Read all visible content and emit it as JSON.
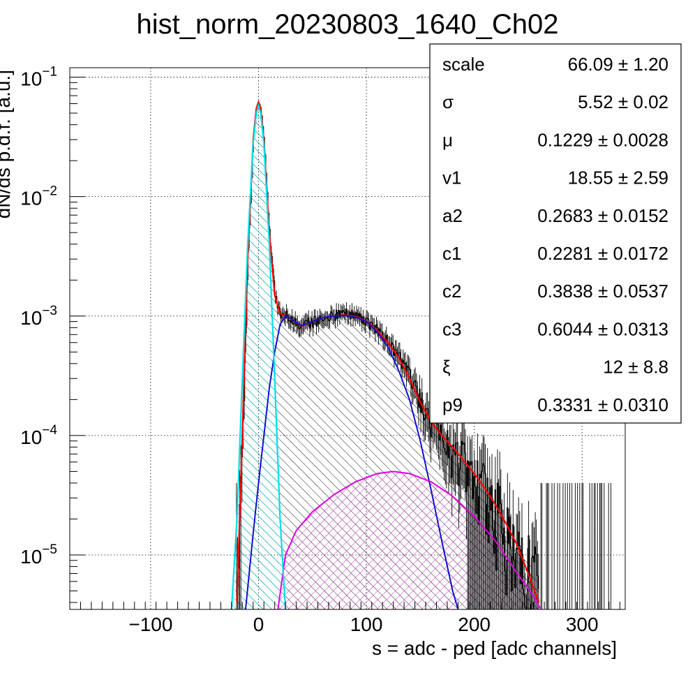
{
  "chart_data": {
    "type": "histogram",
    "title": "hist_norm_20230803_1640_Ch02",
    "xlabel": "s = adc - ped [adc channels]",
    "ylabel": "dN/ds p.d.f. [a.u.]",
    "xlim": [
      -175,
      340
    ],
    "ylim": [
      3.5e-06,
      0.12
    ],
    "yscale": "log",
    "grid": true,
    "x_ticks": [
      {
        "value": -100,
        "label": "−100"
      },
      {
        "value": 0,
        "label": "0"
      },
      {
        "value": 100,
        "label": "100"
      },
      {
        "value": 200,
        "label": "200"
      },
      {
        "value": 300,
        "label": "300"
      }
    ],
    "y_ticks": [
      {
        "value": 1e-05,
        "base": "10",
        "exp": "−5"
      },
      {
        "value": 0.0001,
        "base": "10",
        "exp": "−4"
      },
      {
        "value": 0.001,
        "base": "10",
        "exp": "−3"
      },
      {
        "value": 0.01,
        "base": "10",
        "exp": "−2"
      },
      {
        "value": 0.1,
        "base": "10",
        "exp": "−1"
      }
    ],
    "fit_parameters": [
      {
        "name": "scale",
        "value": "66.09",
        "error": "1.20"
      },
      {
        "name": "σ",
        "value": "5.52",
        "error": "0.02"
      },
      {
        "name": "μ",
        "value": "0.1229",
        "error": "0.0028"
      },
      {
        "name": "v1",
        "value": "18.55",
        "error": "2.59"
      },
      {
        "name": "a2",
        "value": "0.2683",
        "error": "0.0152"
      },
      {
        "name": "c1",
        "value": "0.2281",
        "error": "0.0172"
      },
      {
        "name": "c2",
        "value": "0.3838",
        "error": "0.0537"
      },
      {
        "name": "c3",
        "value": "0.6044",
        "error": "0.0313"
      },
      {
        "name": "ξ",
        "value": "12",
        "error": "8.8"
      },
      {
        "name": "p9",
        "value": "0.3331",
        "error": "0.0310"
      }
    ],
    "series": [
      {
        "role": "data-histogram",
        "color": "#000000",
        "x": [
          -20,
          -15,
          -10,
          -5,
          -2,
          0,
          2,
          5,
          10,
          15,
          20,
          30,
          40,
          50,
          60,
          70,
          80,
          90,
          100,
          110,
          120,
          130,
          140,
          150,
          160,
          170,
          180,
          190,
          200,
          210,
          220,
          230,
          240,
          250,
          260
        ],
        "y": [
          4e-06,
          0.0001,
          0.003,
          0.03,
          0.055,
          0.06,
          0.055,
          0.03,
          0.005,
          0.0015,
          0.00105,
          0.00095,
          0.00082,
          0.0009,
          0.00097,
          0.001,
          0.00105,
          0.001,
          0.0009,
          0.00075,
          0.0006,
          0.00045,
          0.0003,
          0.0002,
          0.00013,
          0.0001,
          7e-05,
          6e-05,
          4.5e-05,
          3.5e-05,
          2.5e-05,
          1.8e-05,
          1.3e-05,
          9e-06,
          6e-06
        ]
      },
      {
        "role": "total-fit",
        "color": "#ff0000",
        "x": [
          -20,
          -15,
          -10,
          -5,
          -2,
          0,
          2,
          5,
          10,
          15,
          20,
          30,
          40,
          50,
          60,
          70,
          80,
          90,
          100,
          110,
          120,
          130,
          140,
          150,
          160,
          170,
          180,
          190,
          200,
          210,
          220,
          230,
          240,
          250,
          260
        ],
        "y": [
          4e-06,
          0.0001,
          0.003,
          0.03,
          0.055,
          0.062,
          0.055,
          0.03,
          0.005,
          0.0015,
          0.00105,
          0.00095,
          0.00082,
          0.0009,
          0.00097,
          0.001,
          0.00102,
          0.00099,
          0.00091,
          0.00076,
          0.0006,
          0.00045,
          0.0003,
          0.00019,
          0.00013,
          0.0001,
          8e-05,
          6.2e-05,
          4.8e-05,
          3.6e-05,
          2.6e-05,
          1.8e-05,
          1.2e-05,
          7e-06,
          4e-06
        ]
      },
      {
        "role": "pedestal-component",
        "color": "#00e0e8",
        "x": [
          -25,
          -20,
          -15,
          -10,
          -5,
          -2,
          0,
          2,
          5,
          10,
          15,
          20,
          25
        ],
        "y": [
          3.5e-06,
          2e-05,
          0.0003,
          0.004,
          0.028,
          0.05,
          0.058,
          0.05,
          0.028,
          0.004,
          0.0003,
          2e-05,
          3.5e-06
        ]
      },
      {
        "role": "first-signal-component",
        "color": "#1010d0",
        "x": [
          -12,
          -5,
          0,
          5,
          10,
          15,
          20,
          25,
          30,
          40,
          50,
          60,
          70,
          80,
          90,
          100,
          110,
          120,
          130,
          140,
          150,
          160,
          170,
          180,
          185
        ],
        "y": [
          3.5e-06,
          1.5e-05,
          4e-05,
          0.0001,
          0.00025,
          0.0005,
          0.00085,
          0.001,
          0.00095,
          0.00083,
          0.0009,
          0.00097,
          0.001,
          0.00101,
          0.00098,
          0.0009,
          0.00074,
          0.00055,
          0.00035,
          0.0002,
          9e-05,
          3.5e-05,
          1.3e-05,
          5e-06,
          3.5e-06
        ]
      },
      {
        "role": "second-signal-component",
        "color": "#e000e0",
        "x": [
          18,
          25,
          35,
          50,
          70,
          90,
          110,
          125,
          140,
          160,
          180,
          200,
          220,
          240,
          255,
          262
        ],
        "y": [
          3.5e-06,
          1e-05,
          1.6e-05,
          2.3e-05,
          3.2e-05,
          4.1e-05,
          4.8e-05,
          5e-05,
          4.8e-05,
          4.1e-05,
          3.1e-05,
          2.1e-05,
          1.3e-05,
          7e-06,
          4.5e-06,
          3.5e-06
        ]
      }
    ]
  }
}
